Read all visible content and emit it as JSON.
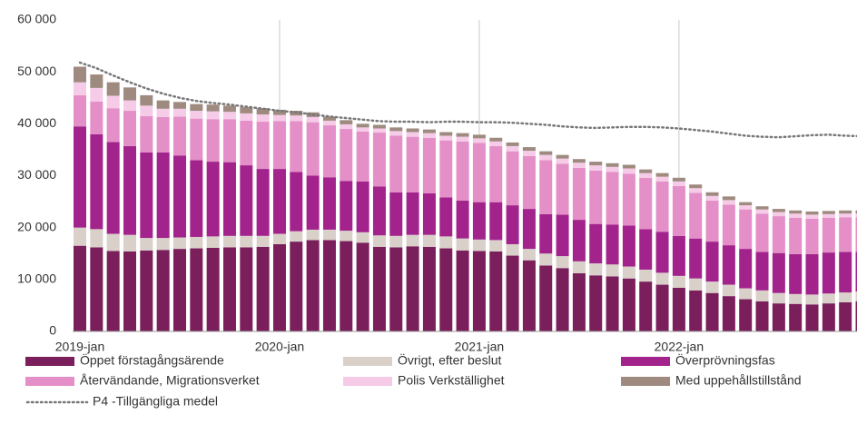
{
  "chart_data": {
    "type": "bar",
    "stacked": true,
    "categories": [
      "2019-jan",
      null,
      null,
      null,
      null,
      null,
      null,
      null,
      null,
      null,
      null,
      null,
      "2020-jan",
      null,
      null,
      null,
      null,
      null,
      null,
      null,
      null,
      null,
      null,
      null,
      "2021-jan",
      null,
      null,
      null,
      null,
      null,
      null,
      null,
      null,
      null,
      null,
      null,
      "2022-jan",
      null,
      null,
      null,
      null,
      null,
      null,
      null,
      null,
      null,
      null,
      null
    ],
    "ylim": [
      0,
      60000
    ],
    "yticks": [
      0,
      {
        "value": 10000,
        "label": "10 000"
      },
      {
        "value": 20000,
        "label": "20 000"
      },
      {
        "value": 30000,
        "label": "30 000"
      },
      {
        "value": 40000,
        "label": "40 000"
      },
      {
        "value": 50000,
        "label": "50 000"
      },
      {
        "value": 60000,
        "label": "60 000"
      }
    ],
    "grid": true,
    "series": [
      {
        "name": "Öppet förstagångsärende",
        "color": "#7a1f5c",
        "values": [
          16500,
          16200,
          15500,
          15400,
          15600,
          15700,
          15900,
          16000,
          16100,
          16200,
          16200,
          16300,
          16800,
          17300,
          17600,
          17600,
          17400,
          17100,
          16300,
          16200,
          16400,
          16300,
          16000,
          15600,
          15500,
          15400,
          14600,
          13700,
          12700,
          12200,
          11200,
          10800,
          10600,
          10200,
          9600,
          9000,
          8400,
          7900,
          7400,
          6800,
          6200,
          5800,
          5400,
          5300,
          5200,
          5400,
          5600,
          5800
        ]
      },
      {
        "name": "Övrigt, efter beslut",
        "color": "#d9d0c9",
        "values": [
          3500,
          3500,
          3300,
          3200,
          2400,
          2300,
          2200,
          2200,
          2200,
          2200,
          2200,
          2100,
          2000,
          2000,
          2000,
          2000,
          2000,
          2000,
          2200,
          2200,
          2200,
          2300,
          2300,
          2300,
          2200,
          2200,
          2200,
          2200,
          2300,
          2300,
          2300,
          2300,
          2300,
          2300,
          2300,
          2300,
          2300,
          2300,
          2200,
          2200,
          2100,
          2100,
          2000,
          1900,
          1900,
          1900,
          1900,
          1900
        ]
      },
      {
        "name": "Överprövningsfas",
        "color": "#a3238d",
        "values": [
          19500,
          18300,
          17700,
          17100,
          16500,
          16500,
          15800,
          14800,
          14400,
          14200,
          13600,
          12900,
          12500,
          11400,
          10400,
          10100,
          9600,
          9800,
          9400,
          8400,
          8200,
          8000,
          7500,
          7300,
          7200,
          7300,
          7500,
          7700,
          7600,
          8000,
          8000,
          7600,
          7700,
          7900,
          7800,
          7900,
          7700,
          7700,
          7700,
          7600,
          7600,
          7400,
          7700,
          7700,
          7800,
          7900,
          7800,
          7600
        ]
      },
      {
        "name": "Återvändande, Migrationsverket",
        "color": "#e48fc7",
        "values": [
          6000,
          6300,
          6500,
          6800,
          7000,
          6800,
          7500,
          8000,
          8200,
          8300,
          8600,
          9100,
          9200,
          9800,
          10300,
          10000,
          10000,
          9600,
          10400,
          10900,
          10700,
          10700,
          11000,
          11400,
          11400,
          10800,
          10400,
          10200,
          10400,
          9800,
          10000,
          10300,
          10100,
          10000,
          9900,
          9700,
          9600,
          8800,
          7900,
          7800,
          7600,
          7400,
          7100,
          7000,
          6800,
          6700,
          6700,
          6700
        ]
      },
      {
        "name": "Polis Verkställighet",
        "color": "#f5cbe8",
        "values": [
          2500,
          2600,
          2400,
          2000,
          2000,
          1600,
          1500,
          1500,
          1500,
          1400,
          1400,
          1400,
          1200,
          1100,
          1000,
          900,
          900,
          800,
          800,
          900,
          900,
          900,
          900,
          900,
          900,
          900,
          1000,
          1000,
          1000,
          1000,
          1000,
          1000,
          1000,
          1000,
          900,
          900,
          900,
          900,
          900,
          900,
          800,
          800,
          800,
          800,
          800,
          700,
          700,
          700
        ]
      },
      {
        "name": "Med uppehållstillstånd",
        "color": "#9e8a7f",
        "values": [
          3000,
          2600,
          2600,
          2500,
          2000,
          1600,
          1300,
          1300,
          1300,
          1200,
          1200,
          1200,
          1000,
          900,
          900,
          800,
          800,
          700,
          700,
          700,
          700,
          700,
          700,
          700,
          700,
          700,
          700,
          700,
          700,
          700,
          700,
          700,
          700,
          700,
          700,
          700,
          700,
          700,
          700,
          700,
          600,
          600,
          600,
          600,
          600,
          600,
          600,
          600
        ]
      },
      {
        "name": "P4 -Tillgängliga medel",
        "type": "line",
        "color": "#777777",
        "values": [
          51800,
          50700,
          49300,
          48000,
          46800,
          45800,
          45000,
          44400,
          44000,
          43700,
          43300,
          42900,
          42500,
          42200,
          41800,
          41400,
          41100,
          40800,
          40500,
          40400,
          40400,
          40300,
          40400,
          40400,
          40300,
          40300,
          40200,
          40000,
          39800,
          39500,
          39300,
          39200,
          39300,
          39400,
          39400,
          39300,
          39100,
          38800,
          38500,
          38100,
          37700,
          37500,
          37400,
          37600,
          37800,
          37900,
          37700,
          37600
        ]
      }
    ]
  }
}
